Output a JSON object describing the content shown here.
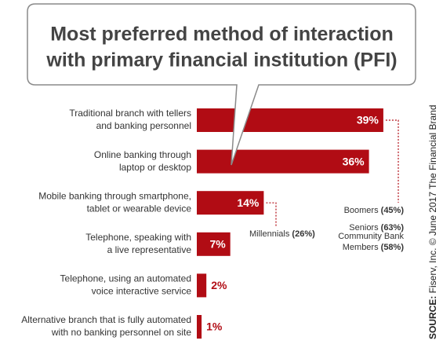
{
  "chart_data": {
    "type": "bar",
    "title": [
      "Most preferred method of interaction",
      "with primary financial institution (PFI)"
    ],
    "categories": [
      [
        "Traditional branch with tellers",
        "and banking personnel"
      ],
      [
        "Online banking through",
        "laptop or desktop"
      ],
      [
        "Mobile banking through smartphone,",
        "tablet or wearable device"
      ],
      [
        "Telephone, speaking with",
        "a live representative"
      ],
      [
        "Telephone, using an automated",
        "voice interactive service"
      ],
      [
        "Alternative branch that is fully automated",
        "with no banking personnel on site"
      ]
    ],
    "values": [
      39,
      36,
      14,
      7,
      2,
      1
    ],
    "value_labels": [
      "39%",
      "36%",
      "14%",
      "7%",
      "2%",
      "1%"
    ],
    "color": "#b10c14",
    "annotations": [
      {
        "lines": [
          "Boomers"
        ],
        "value": 45,
        "value_label": "(45%)"
      },
      {
        "lines": [
          "Seniors"
        ],
        "value": 63,
        "value_label": "(63%)"
      },
      {
        "lines": [
          "Community Bank",
          "Members"
        ],
        "value": 58,
        "value_label": "(58%)"
      },
      {
        "lines": [
          "Millennials"
        ],
        "value": 26,
        "value_label": "(26%)"
      }
    ],
    "source_label": "SOURCE:",
    "source": "Fiserv, Inc. © June 2017 The Financial Brand"
  }
}
